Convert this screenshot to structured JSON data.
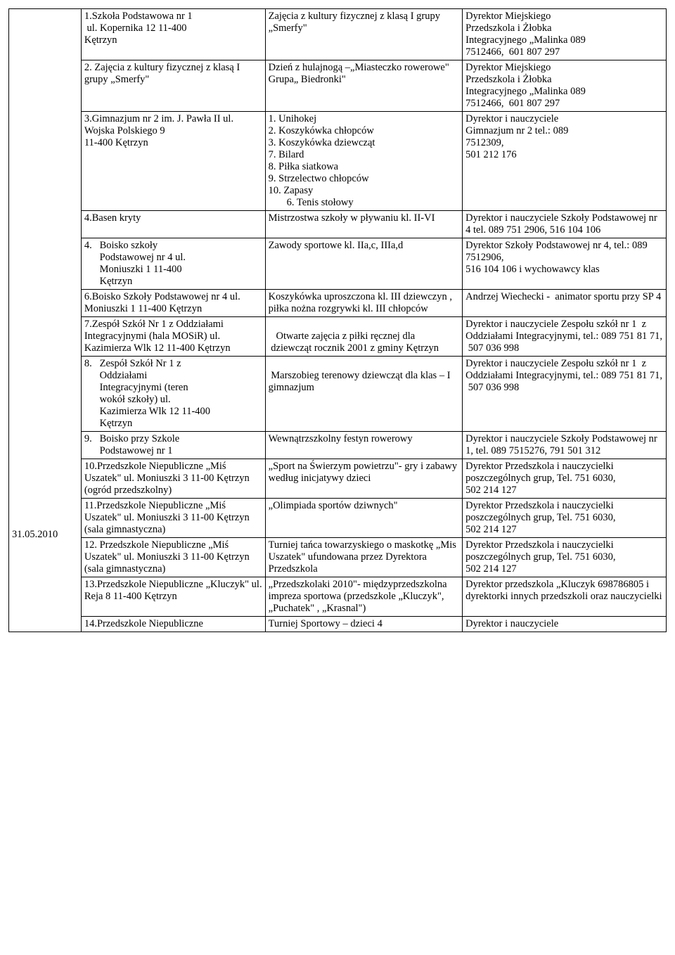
{
  "dateLabel": "31.05.2010",
  "rows": [
    {
      "c1": "1.Szkoła Podstawowa nr 1\n ul. Kopernika 12 11-400\nKętrzyn",
      "c2": "Zajęcia z kultury fizycznej z klasą I grupy „Smerfy\"",
      "c3": "Dyrektor Miejskiego\nPrzedszkola i Żłobka\nIntegracyjnego „Malinka 089\n7512466,  601 807 297"
    },
    {
      "c1": "2. Zajęcia z kultury fizycznej z klasą I grupy „Smerfy\"",
      "c2": "Dzień z hulajnogą –„Miasteczko rowerowe\"\nGrupa„ Biedronki\"",
      "c3": "Dyrektor Miejskiego\nPrzedszkola i Żłobka\nIntegracyjnego „Malinka 089\n7512466,  601 807 297"
    },
    {
      "c1": "3.Gimnazjum nr 2 im. J. Pawła II ul. Wojska Polskiego 9\n11-400 Kętrzyn",
      "c2list": [
        "Unihokej",
        "Koszykówka chłopców",
        "Koszykówka dziewcząt",
        "Bilard",
        "Piłka siatkowa",
        "Strzelectwo chłopców",
        "Zapasy"
      ],
      "c2listNums": [
        "1.",
        "2.",
        "3.",
        "7.",
        "8.",
        "9.",
        "10."
      ],
      "c2sub": "6.    Tenis stołowy",
      "c3": "Dyrektor i nauczyciele\nGimnazjum nr 2 tel.: 089\n7512309,\n501 212 176"
    },
    {
      "c1": "4.Basen kryty",
      "c2": "Mistrzostwa szkoły w pływaniu kl. II-VI",
      "c3": "Dyrektor i nauczyciele Szkoły Podstawowej nr 4 tel. 089 751 2906, 516 104 106"
    },
    {
      "c1": "4.   Boisko szkoły\n      Podstawowej nr 4 ul.\n      Moniuszki 1 11-400\n      Kętrzyn",
      "c2": "Zawody sportowe kl. IIa,c, IIIa,d",
      "c3": "Dyrektor Szkoły Podstawowej nr 4, tel.: 089 7512906,\n516 104 106 i wychowawcy klas"
    },
    {
      "c1": "6.Boisko Szkoły Podstawowej nr 4 ul. Moniuszki 1 11-400 Kętrzyn",
      "c2": "Koszykówka uproszczona kl. III dziewczyn ,  piłka nożna rozgrywki kl. III chłopców",
      "c3": "Andrzej Wiechecki -  animator sportu przy SP 4"
    },
    {
      "c1": "7.Zespół Szkół Nr 1 z Oddziałami Integracyjnymi (hala MOSiR) ul. Kazimierza Wlk 12 11-400 Kętrzyn",
      "c2": "\n   Otwarte zajęcia z piłki ręcznej dla\n dziewcząt rocznik 2001 z gminy Kętrzyn",
      "c3": "Dyrektor i nauczyciele Zespołu szkół nr 1  z Oddziałami Integracyjnymi, tel.: 089 751 81 71,\n 507 036 998"
    },
    {
      "c1": "8.   Zespół Szkół Nr 1 z\n      Oddziałami\n      Integracyjnymi (teren\n      wokół szkoły) ul.\n      Kazimierza Wlk 12 11-400\n      Kętrzyn",
      "c2": "\n Marszobieg terenowy dziewcząt dla klas – I   gimnazjum",
      "c3": "Dyrektor i nauczyciele Zespołu szkół nr 1  z Oddziałami Integracyjnymi, tel.: 089 751 81 71,\n 507 036 998"
    },
    {
      "c1": "9.   Boisko przy Szkole\n      Podstawowej nr 1",
      "c2": "Wewnątrzszkolny festyn rowerowy",
      "c3": "Dyrektor i nauczyciele Szkoły Podstawowej nr 1, tel. 089 7515276, 791 501 312"
    },
    {
      "c1": "10.Przedszkole Niepubliczne „Miś Uszatek\" ul. Moniuszki 3 11-00 Kętrzyn (ogród przedszkolny)",
      "c2": "„Sport na Świerzym powietrzu\"- gry i zabawy według inicjatywy dzieci",
      "c3": "Dyrektor Przedszkola i nauczycielki poszczególnych grup, Tel. 751 6030,\n502 214 127"
    },
    {
      "c1": "11.Przedszkole Niepubliczne „Miś Uszatek\" ul. Moniuszki 3 11-00 Kętrzyn (sala gimnastyczna)",
      "c2": "„Olimpiada sportów dziwnych\"",
      "c3": "Dyrektor Przedszkola i nauczycielki poszczególnych grup, Tel. 751 6030,\n502 214 127"
    },
    {
      "c1": "12. Przedszkole Niepubliczne „Miś Uszatek\" ul. Moniuszki 3 11-00 Kętrzyn (sala gimnastyczna)",
      "c2": "Turniej tańca towarzyskiego o maskotkę „Mis Uszatek\" ufundowana przez Dyrektora Przedszkola",
      "c3": "Dyrektor Przedszkola i nauczycielki poszczególnych grup, Tel. 751 6030,\n502 214 127"
    },
    {
      "c1": "13.Przedszkole Niepubliczne „Kluczyk\" ul. Reja 8 11-400 Kętrzyn",
      "c2": "„Przedszkolaki 2010\"- międzyprzedszkolna impreza sportowa (przedszkole „Kluczyk\", „Puchatek\" , „Krasnal\")",
      "c3": "Dyrektor przedszkola „Kluczyk 698786805 i dyrektorki innych przedszkoli oraz nauczycielki"
    },
    {
      "c1": "14.Przedszkole Niepubliczne",
      "c2": "Turniej Sportowy – dzieci 4",
      "c3": "Dyrektor i nauczyciele"
    }
  ]
}
